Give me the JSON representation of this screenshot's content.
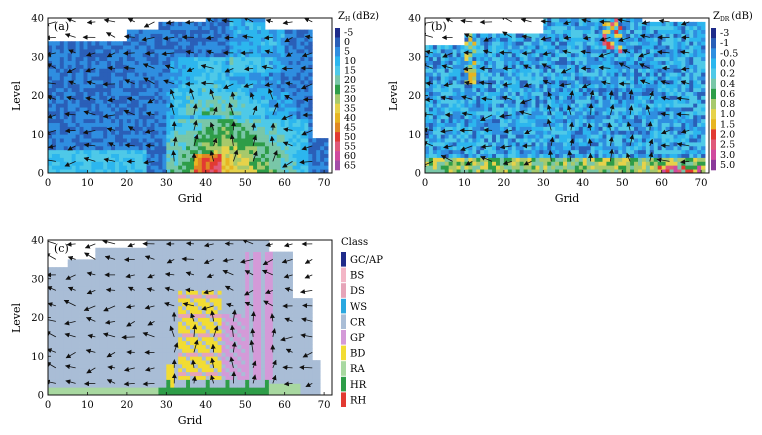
{
  "chart_data": [
    {
      "type": "heatmap",
      "panel": "(a)",
      "title": "",
      "xlabel": "Grid",
      "ylabel": "Level",
      "xlim": [
        0,
        72
      ],
      "ylim": [
        0,
        40
      ],
      "xticks": [
        "0",
        "10",
        "20",
        "30",
        "40",
        "50",
        "60",
        "70"
      ],
      "yticks": [
        "0",
        "10",
        "20",
        "30",
        "40"
      ],
      "colorbar": {
        "symbol": "Z",
        "subscript": "H",
        "unit": "(dBz)",
        "labels": [
          "-5",
          "0",
          "5",
          "10",
          "15",
          "20",
          "25",
          "30",
          "35",
          "40",
          "45",
          "50",
          "55",
          "60",
          "65"
        ],
        "colors": [
          "#1f2c8a",
          "#2a5fb8",
          "#2f8ee0",
          "#2cb6ee",
          "#4ec9e8",
          "#79c7a8",
          "#2e9d48",
          "#a7c96b",
          "#e6d24a",
          "#e7b521",
          "#e08823",
          "#e23a32",
          "#e05a7a",
          "#d04a9e",
          "#a34da8"
        ]
      },
      "description_values": "Background ~0-5 dBZ; core 25-40 dBZ between grid 30-65 below level 15; peak 50-55 dBZ near grid 38-42, level 3"
    },
    {
      "type": "heatmap",
      "panel": "(b)",
      "xlabel": "Grid",
      "ylabel": "Level",
      "xlim": [
        0,
        72
      ],
      "ylim": [
        0,
        40
      ],
      "xticks": [
        "0",
        "10",
        "20",
        "30",
        "40",
        "50",
        "60",
        "70"
      ],
      "yticks": [
        "0",
        "10",
        "20",
        "30",
        "40"
      ],
      "colorbar": {
        "symbol": "Z",
        "subscript": "DR",
        "unit": "(dB)",
        "labels": [
          "-3",
          "-1",
          "-0.5",
          "0.0",
          "0.2",
          "0.4",
          "0.6",
          "0.8",
          "1.0",
          "1.5",
          "2.0",
          "2.5",
          "3.0",
          "5.0"
        ],
        "colors": [
          "#1f2c8a",
          "#2a5fb8",
          "#2f8ee0",
          "#2cb6ee",
          "#4ec9e8",
          "#79c7a8",
          "#2e9d48",
          "#a7c96b",
          "#e6d24a",
          "#e7b521",
          "#e23a32",
          "#e05a7a",
          "#d04a9e",
          "#8a3a9a"
        ]
      },
      "description_values": "Mostly -0.5 to 0.2 dB; 0.8-1.5 dB near surface; >2 dB patches near grid 60-68, level 1-3"
    },
    {
      "type": "heatmap",
      "panel": "(c)",
      "xlabel": "Grid",
      "ylabel": "Level",
      "xlim": [
        0,
        72
      ],
      "ylim": [
        0,
        40
      ],
      "xticks": [
        "0",
        "10",
        "20",
        "30",
        "40",
        "50",
        "60",
        "70"
      ],
      "yticks": [
        "0",
        "10",
        "20",
        "30",
        "40"
      ],
      "legend_title": "Class",
      "classes": [
        {
          "label": "GC/AP",
          "color": "#1f2c8a"
        },
        {
          "label": "BS",
          "color": "#f3b6c6"
        },
        {
          "label": "DS",
          "color": "#e6a4b8"
        },
        {
          "label": "WS",
          "color": "#2aa8e0"
        },
        {
          "label": "CR",
          "color": "#a9bdd6"
        },
        {
          "label": "GP",
          "color": "#d49ad8"
        },
        {
          "label": "BD",
          "color": "#f2dc33"
        },
        {
          "label": "RA",
          "color": "#a8d8a0"
        },
        {
          "label": "HR",
          "color": "#2e9d48"
        },
        {
          "label": "RH",
          "color": "#e23a32"
        }
      ],
      "description_values": "CR dominates upper levels; GP columns near grid 45-57 up to level 36; BD/DS near grid 33-45; RA near surface grid 0-30; HR along base grid 26-55"
    }
  ]
}
